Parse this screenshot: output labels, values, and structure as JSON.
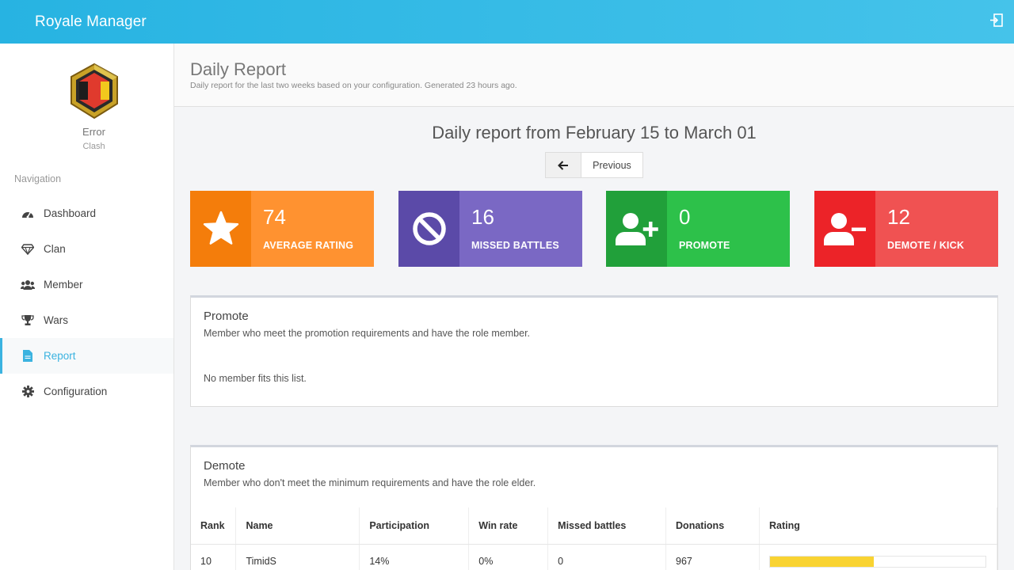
{
  "app": {
    "title": "Royale Manager"
  },
  "clan": {
    "name": "Error",
    "subtitle": "Clash"
  },
  "sidebar": {
    "heading": "Navigation",
    "items": [
      {
        "label": "Dashboard",
        "icon": "dashboard-icon"
      },
      {
        "label": "Clan",
        "icon": "diamond-icon"
      },
      {
        "label": "Member",
        "icon": "users-icon"
      },
      {
        "label": "Wars",
        "icon": "trophy-icon"
      },
      {
        "label": "Report",
        "icon": "file-icon",
        "active": true
      },
      {
        "label": "Configuration",
        "icon": "gear-icon"
      }
    ]
  },
  "header": {
    "title": "Daily Report",
    "subtitle": "Daily report for the last two weeks based on your configuration. Generated 23 hours ago."
  },
  "report": {
    "title": "Daily report from February 15 to March 01",
    "previous_label": "Previous"
  },
  "stats": [
    {
      "value": "74",
      "label": "AVERAGE RATING",
      "icon": "star-icon",
      "color": "#ff9230",
      "icon_bg": "#f47d0b"
    },
    {
      "value": "16",
      "label": "MISSED BATTLES",
      "icon": "ban-icon",
      "color": "#7a68c4",
      "icon_bg": "#5b4aa8"
    },
    {
      "value": "0",
      "label": "PROMOTE",
      "icon": "user-plus-icon",
      "color": "#2dc14a",
      "icon_bg": "#21a03a"
    },
    {
      "value": "12",
      "label": "DEMOTE / KICK",
      "icon": "user-minus-icon",
      "color": "#f05252",
      "icon_bg": "#ec2328"
    }
  ],
  "promote": {
    "title": "Promote",
    "description": "Member who meet the promotion requirements and have the role member.",
    "empty": "No member fits this list."
  },
  "demote": {
    "title": "Demote",
    "description": "Member who don't meet the minimum requirements and have the role elder.",
    "columns": [
      "Rank",
      "Name",
      "Participation",
      "Win rate",
      "Missed battles",
      "Donations",
      "Rating"
    ],
    "rows": [
      {
        "rank": "10",
        "name": "TimidS",
        "participation": "14%",
        "win_rate": "0%",
        "missed": "0",
        "donations": "967",
        "rating": 0.48
      }
    ]
  }
}
